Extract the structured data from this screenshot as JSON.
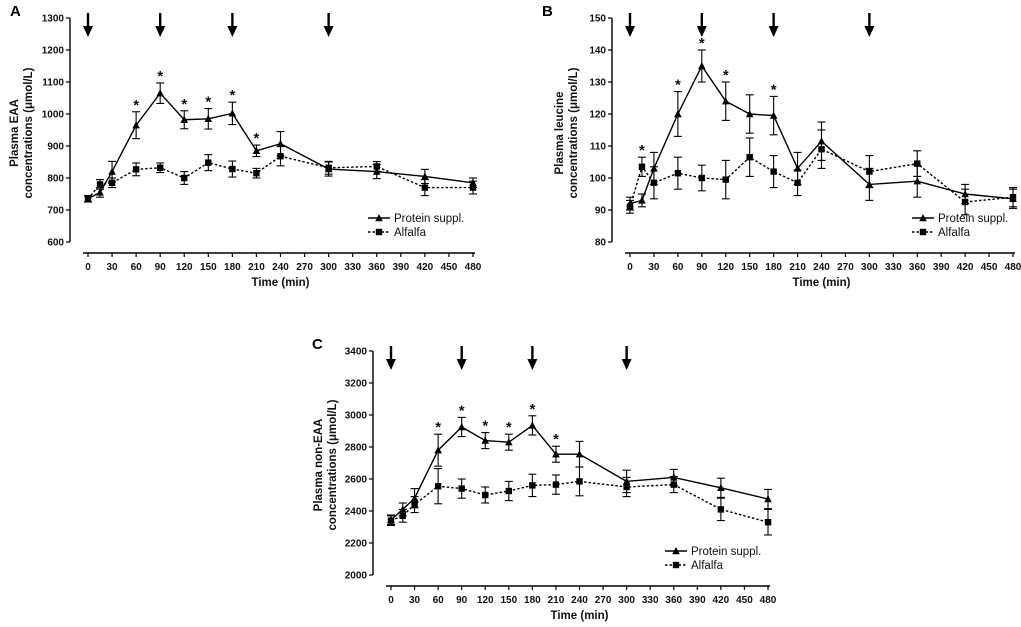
{
  "chart_data": [
    {
      "panel": "A",
      "type": "line",
      "ylabel_line1": "Plasma EAA",
      "ylabel_line2": "concentrations (μmol/L)",
      "xlabel": "Time (min)",
      "ylim": [
        600,
        1300
      ],
      "yticks": [
        600,
        700,
        800,
        900,
        1000,
        1100,
        1200,
        1300
      ],
      "xticks": [
        0,
        30,
        60,
        90,
        120,
        150,
        180,
        210,
        240,
        270,
        300,
        330,
        360,
        390,
        420,
        450,
        480
      ],
      "arrows": [
        0,
        90,
        180,
        300
      ],
      "legend": [
        "Protein suppl.",
        "Alfalfa"
      ],
      "series": [
        {
          "name": "Protein suppl.",
          "style": "solid",
          "marker": "triangle",
          "x": [
            0,
            15,
            30,
            60,
            90,
            120,
            150,
            180,
            210,
            240,
            300,
            360,
            420,
            480
          ],
          "y": [
            735,
            755,
            820,
            965,
            1065,
            982,
            985,
            1002,
            885,
            907,
            828,
            820,
            805,
            785
          ],
          "err": [
            10,
            15,
            32,
            42,
            32,
            28,
            32,
            35,
            18,
            38,
            22,
            22,
            22,
            15
          ]
        },
        {
          "name": "Alfalfa",
          "style": "dotted",
          "marker": "square",
          "x": [
            0,
            15,
            30,
            60,
            90,
            120,
            150,
            180,
            210,
            240,
            300,
            360,
            420,
            480
          ],
          "y": [
            735,
            780,
            785,
            827,
            832,
            800,
            848,
            828,
            815,
            868,
            832,
            836,
            770,
            770
          ],
          "err": [
            10,
            15,
            15,
            20,
            15,
            20,
            25,
            25,
            15,
            30,
            20,
            15,
            25,
            20
          ]
        }
      ],
      "significance_x": [
        60,
        90,
        120,
        150,
        180,
        210
      ],
      "significance_label": "*"
    },
    {
      "panel": "B",
      "type": "line",
      "ylabel_line1": "Plasma leucine",
      "ylabel_line2": "concentrations (μmol/L)",
      "xlabel": "Time (min)",
      "ylim": [
        80,
        150
      ],
      "yticks": [
        80,
        90,
        100,
        110,
        120,
        130,
        140,
        150
      ],
      "xticks": [
        0,
        30,
        60,
        90,
        120,
        150,
        180,
        210,
        240,
        270,
        300,
        330,
        360,
        390,
        420,
        450,
        480
      ],
      "arrows": [
        0,
        90,
        180,
        300
      ],
      "legend": [
        "Protein suppl.",
        "Alfalfa"
      ],
      "series": [
        {
          "name": "Protein suppl.",
          "style": "solid",
          "marker": "triangle",
          "x": [
            0,
            15,
            30,
            60,
            90,
            120,
            150,
            180,
            210,
            240,
            300,
            360,
            420,
            480
          ],
          "y": [
            92,
            93,
            103,
            120,
            135,
            124,
            120,
            119.5,
            103,
            111.5,
            98,
            99,
            95,
            93.5
          ],
          "err": [
            2,
            2,
            5,
            7,
            5,
            6,
            6,
            6,
            5,
            6,
            5,
            5,
            3,
            3
          ]
        },
        {
          "name": "Alfalfa",
          "style": "dotted",
          "marker": "square",
          "x": [
            0,
            15,
            30,
            60,
            90,
            120,
            150,
            180,
            210,
            240,
            300,
            360,
            420,
            480
          ],
          "y": [
            91,
            103.5,
            98.5,
            101.5,
            100,
            99.5,
            106.5,
            102,
            98.5,
            109,
            102,
            104.5,
            92.5,
            94
          ],
          "err": [
            2,
            3,
            5,
            5,
            4,
            6,
            6,
            5,
            4,
            6,
            5,
            4,
            4,
            3
          ]
        }
      ],
      "significance_x": [
        15,
        60,
        90,
        120,
        180
      ],
      "significance_label": "*"
    },
    {
      "panel": "C",
      "type": "line",
      "ylabel_line1": "Plasma non-EAA",
      "ylabel_line2": "concentrations (μmol/L)",
      "xlabel": "Time (min)",
      "ylim": [
        2000,
        3400
      ],
      "yticks": [
        2000,
        2200,
        2400,
        2600,
        2800,
        3000,
        3200,
        3400
      ],
      "xticks": [
        0,
        30,
        60,
        90,
        120,
        150,
        180,
        210,
        240,
        270,
        300,
        330,
        360,
        390,
        420,
        450,
        480
      ],
      "arrows": [
        0,
        90,
        180,
        300
      ],
      "legend": [
        "Protein suppl.",
        "Alfalfa"
      ],
      "series": [
        {
          "name": "Protein suppl.",
          "style": "solid",
          "marker": "triangle",
          "x": [
            0,
            15,
            30,
            60,
            90,
            120,
            150,
            180,
            210,
            240,
            300,
            360,
            420,
            480
          ],
          "y": [
            2345,
            2410,
            2480,
            2780,
            2925,
            2840,
            2830,
            2935,
            2755,
            2755,
            2585,
            2610,
            2545,
            2475
          ],
          "err": [
            30,
            40,
            60,
            100,
            60,
            50,
            50,
            60,
            50,
            80,
            70,
            50,
            60,
            60
          ]
        },
        {
          "name": "Alfalfa",
          "style": "dotted",
          "marker": "square",
          "x": [
            0,
            15,
            30,
            60,
            90,
            120,
            150,
            180,
            210,
            240,
            300,
            360,
            420,
            480
          ],
          "y": [
            2340,
            2370,
            2440,
            2555,
            2540,
            2500,
            2525,
            2560,
            2565,
            2585,
            2550,
            2565,
            2410,
            2330
          ],
          "err": [
            30,
            40,
            50,
            110,
            60,
            50,
            60,
            70,
            60,
            90,
            60,
            50,
            70,
            80
          ]
        }
      ],
      "significance_x": [
        60,
        90,
        120,
        150,
        180,
        210
      ],
      "significance_label": "*"
    }
  ]
}
